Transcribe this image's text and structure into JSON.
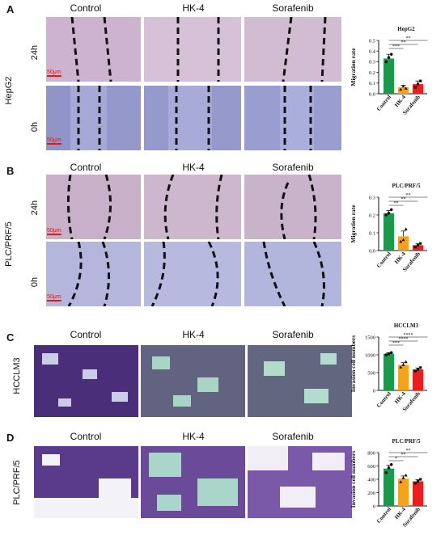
{
  "colors": {
    "control": "#1a9a4a",
    "hk4": "#f7a21b",
    "sorafenib": "#ee1c1c",
    "ink": "#111111"
  },
  "panels": {
    "A": {
      "letter": "A",
      "columns": [
        "Control",
        "HK-4",
        "Sorafenib"
      ],
      "cell_line": "HepG2",
      "rows": [
        "24h",
        "0h"
      ],
      "scale": "50μm"
    },
    "B": {
      "letter": "B",
      "columns": [
        "Control",
        "HK-4",
        "Sorafenib"
      ],
      "cell_line": "PLC/PRF/5",
      "rows": [
        "24h",
        "0h"
      ],
      "scale": "50μm"
    },
    "C": {
      "letter": "C",
      "columns": [
        "Control",
        "HK-4",
        "Sorafenib"
      ],
      "cell_line": "HCCLM3"
    },
    "D": {
      "letter": "D",
      "columns": [
        "Control",
        "HK-4",
        "Sorafenib"
      ],
      "cell_line": "PLC/PRF/5"
    }
  },
  "chart_data": [
    {
      "type": "bar",
      "title": "HepG2",
      "ylabel": "Migration rate",
      "categories": [
        "Control",
        "HK-4",
        "Sorafenib"
      ],
      "values": [
        0.33,
        0.06,
        0.09
      ],
      "errors": [
        0.04,
        0.02,
        0.03
      ],
      "points": [
        [
          0.3,
          0.34,
          0.37
        ],
        [
          0.04,
          0.07,
          0.05
        ],
        [
          0.06,
          0.09,
          0.12
        ]
      ],
      "ylim": [
        0,
        0.5
      ],
      "yticks": [
        "0.0",
        "0.1",
        "0.2",
        "0.3",
        "0.4",
        "0.5"
      ],
      "significance": [
        "***",
        "**",
        "**"
      ]
    },
    {
      "type": "bar",
      "title": "PLC/PRF/5",
      "ylabel": "Migration rate",
      "categories": [
        "Control",
        "HK-4",
        "Sorafenib"
      ],
      "values": [
        0.21,
        0.08,
        0.03
      ],
      "errors": [
        0.015,
        0.03,
        0.01
      ],
      "points": [
        [
          0.2,
          0.21,
          0.23
        ],
        [
          0.05,
          0.06,
          0.12
        ],
        [
          0.02,
          0.03,
          0.04
        ]
      ],
      "ylim": [
        0,
        0.3
      ],
      "yticks": [
        "0.0",
        "0.1",
        "0.2",
        "0.3"
      ],
      "significance": [
        "**",
        "**",
        "**"
      ]
    },
    {
      "type": "bar",
      "title": "HCCLM3",
      "ylabel": "Invasion cell numbers",
      "categories": [
        "Control",
        "HK-4",
        "Sorafenib"
      ],
      "values": [
        1030,
        720,
        590
      ],
      "errors": [
        30,
        60,
        40
      ],
      "points": [
        [
          1000,
          1030,
          1060
        ],
        [
          650,
          720,
          800
        ],
        [
          540,
          590,
          640
        ]
      ],
      "ylim": [
        0,
        1500
      ],
      "yticks": [
        "0",
        "500",
        "1000",
        "1500"
      ],
      "significance": [
        "***",
        "****",
        "****"
      ]
    },
    {
      "type": "bar",
      "title": "PLC/PRF/5",
      "ylabel": "Invasion cell numbers",
      "categories": [
        "Control",
        "HK-4",
        "Sorafenib"
      ],
      "values": [
        560,
        410,
        370
      ],
      "errors": [
        50,
        40,
        25
      ],
      "points": [
        [
          500,
          570,
          620
        ],
        [
          360,
          420,
          460
        ],
        [
          340,
          370,
          400
        ]
      ],
      "ylim": [
        0,
        800
      ],
      "yticks": [
        "0",
        "200",
        "400",
        "600",
        "800"
      ],
      "significance": [
        "*",
        "**",
        "**"
      ]
    }
  ]
}
